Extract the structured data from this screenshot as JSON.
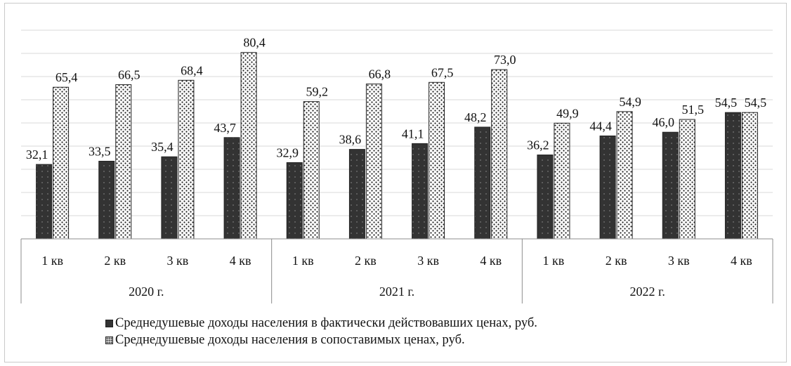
{
  "chart_data": {
    "type": "bar",
    "groups": [
      "2020 г.",
      "2021 г.",
      "2022 г."
    ],
    "categories": [
      "1 кв",
      "2 кв",
      "3 кв",
      "4 кв",
      "1 кв",
      "2 кв",
      "3 кв",
      "4 кв",
      "1 кв",
      "2 кв",
      "3 кв",
      "4 кв"
    ],
    "series": [
      {
        "name": "Среднедушевые доходы населения в фактически действовавших ценах, руб.",
        "value_labels": [
          "32,1",
          "33,5",
          "35,4",
          "43,7",
          "32,9",
          "38,6",
          "41,1",
          "48,2",
          "36,2",
          "44,4",
          "46,0",
          "54,5"
        ],
        "values": [
          32.1,
          33.5,
          35.4,
          43.7,
          32.9,
          38.6,
          41.1,
          48.2,
          36.2,
          44.4,
          46.0,
          54.5
        ],
        "color": "#333333",
        "pattern": "dark"
      },
      {
        "name": "Среднедушевые доходы населения в сопоставимых ценах, руб.",
        "value_labels": [
          "65,4",
          "66,5",
          "68,4",
          "80,4",
          "59,2",
          "66,8",
          "67,5",
          "73,0",
          "49,9",
          "54,9",
          "51,5",
          "54,5"
        ],
        "values": [
          65.4,
          66.5,
          68.4,
          80.4,
          59.2,
          66.8,
          67.5,
          73.0,
          49.9,
          54.9,
          51.5,
          54.5
        ],
        "color": "#ffffff",
        "pattern": "dots"
      }
    ],
    "ylim": [
      0,
      90
    ],
    "grid": true,
    "legend_position": "bottom"
  }
}
